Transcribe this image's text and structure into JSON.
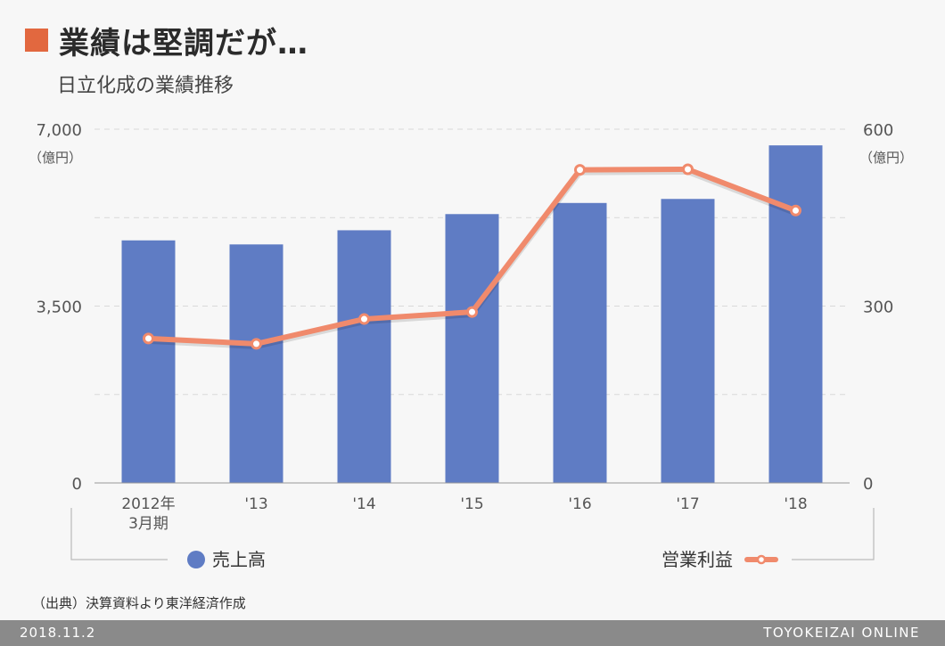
{
  "header": {
    "title": "業績は堅調だが…",
    "subtitle": "日立化成の業績推移",
    "accent_color": "#e2683f"
  },
  "chart_data": {
    "type": "bar",
    "title": "業績は堅調だが…",
    "subtitle": "日立化成の業績推移",
    "categories": [
      "2012年\n3月期",
      "'13",
      "'14",
      "'15",
      "'16",
      "'17",
      "'18"
    ],
    "series": [
      {
        "name": "売上高",
        "type": "bar",
        "axis": "left",
        "color": "#5f7cc4",
        "values": [
          4800,
          4720,
          5000,
          5320,
          5540,
          5620,
          6680
        ]
      },
      {
        "name": "営業利益",
        "type": "line",
        "axis": "right",
        "color": "#f08a6c",
        "values": [
          245,
          236,
          278,
          290,
          531,
          532,
          462
        ]
      }
    ],
    "left_axis": {
      "min": 0,
      "max": 7000,
      "ticks": [
        "0",
        "3,500",
        "7,000"
      ],
      "tick_values": [
        0,
        3500,
        7000
      ],
      "unit": "（億円）"
    },
    "right_axis": {
      "min": 0,
      "max": 600,
      "ticks": [
        "0",
        "300",
        "600"
      ],
      "tick_values": [
        0,
        300,
        600
      ],
      "unit": "（億円）"
    },
    "grid": true,
    "legend_placement": "bottom"
  },
  "source": "（出典）決算資料より東洋経済作成",
  "footer": {
    "date": "2018.11.2",
    "brand": "TOYOKEIZAI ONLINE"
  }
}
